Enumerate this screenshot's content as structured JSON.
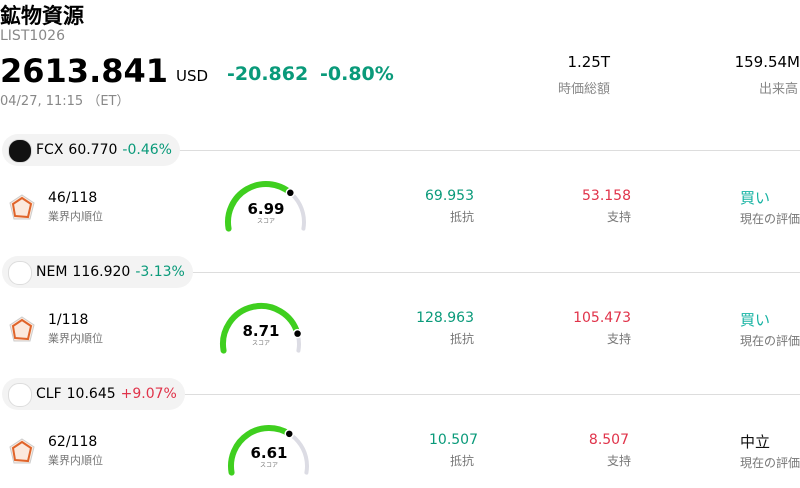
{
  "header": {
    "title": "鉱物資源",
    "code": "LIST1026",
    "price": "2613.841",
    "currency": "USD",
    "change": "-20.862",
    "change_pct": "-0.80%",
    "change_color": "#0a9a7a",
    "time": "04/27, 11:15 （ET）",
    "stats": [
      {
        "value": "1.25T",
        "label": "時価総額"
      },
      {
        "value": "159.54M",
        "label": "出来高"
      }
    ]
  },
  "labels": {
    "rank": "業界内順位",
    "score": "スコア",
    "resistance": "抵抗",
    "support": "支持",
    "rating": "現在の評価"
  },
  "score_range": [
    0,
    10
  ],
  "stocks": [
    {
      "symbol": "FCX",
      "price": "60.770",
      "change": "-0.46%",
      "change_color": "#0a9a7a",
      "rank": "46/118",
      "score": 6.99,
      "resistance": "69.953",
      "support": "53.158",
      "rating": "買い",
      "rating_color": "#17b3a3"
    },
    {
      "symbol": "NEM",
      "price": "116.920",
      "change": "-3.13%",
      "change_color": "#0a9a7a",
      "rank": "1/118",
      "score": 8.71,
      "resistance": "128.963",
      "support": "105.473",
      "rating": "買い",
      "rating_color": "#17b3a3"
    },
    {
      "symbol": "CLF",
      "price": "10.645",
      "change": "+9.07%",
      "change_color": "#e0334a",
      "rank": "62/118",
      "score": 6.61,
      "resistance": "10.507",
      "support": "8.507",
      "rating": "中立",
      "rating_color": "#111111"
    }
  ]
}
